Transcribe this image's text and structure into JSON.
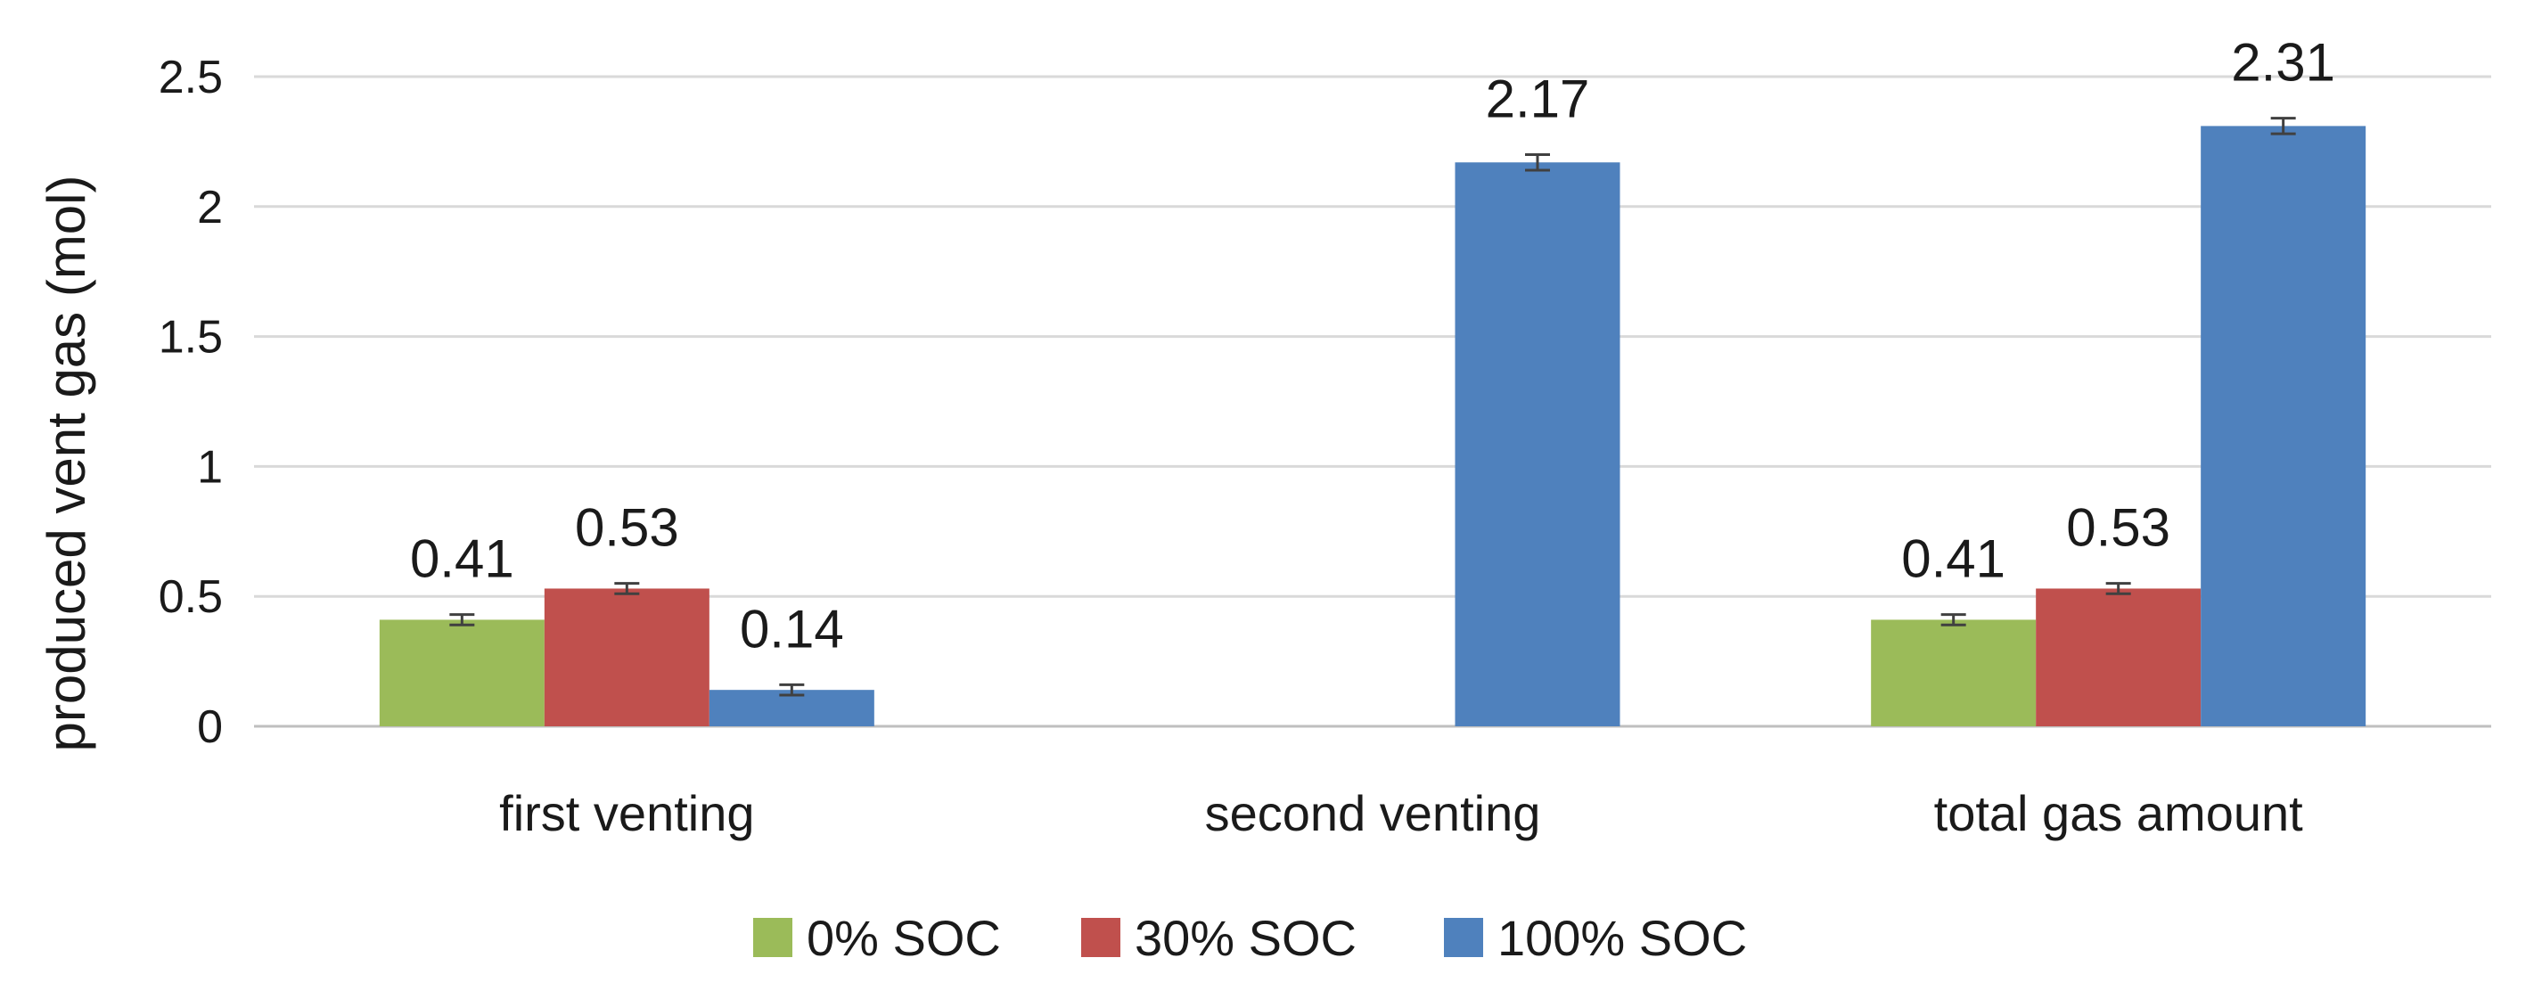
{
  "chart_data": {
    "type": "bar",
    "title": "",
    "xlabel": "",
    "ylabel": "produced vent gas (mol)",
    "ylim": [
      0,
      2.5
    ],
    "yticks": [
      0,
      0.5,
      1,
      1.5,
      2,
      2.5
    ],
    "ytick_labels": [
      "0",
      "0.5",
      "1",
      "1.5",
      "2",
      "2.5"
    ],
    "grid": true,
    "legend_position": "bottom",
    "categories": [
      "first venting",
      "second venting",
      "total gas amount"
    ],
    "series": [
      {
        "name": "0% SOC",
        "color": "#9BBB59",
        "values": [
          0.41,
          null,
          0.41
        ],
        "errors": [
          0.02,
          null,
          0.02
        ],
        "labels": [
          "0.41",
          "",
          "0.41"
        ]
      },
      {
        "name": "30% SOC",
        "color": "#C0504D",
        "values": [
          0.53,
          null,
          0.53
        ],
        "errors": [
          0.02,
          null,
          0.02
        ],
        "labels": [
          "0.53",
          "",
          "0.53"
        ]
      },
      {
        "name": "100% SOC",
        "color": "#4F81BD",
        "values": [
          0.14,
          2.17,
          2.31
        ],
        "errors": [
          0.02,
          0.03,
          0.03
        ],
        "labels": [
          "0.14",
          "2.17",
          "2.31"
        ]
      }
    ]
  }
}
